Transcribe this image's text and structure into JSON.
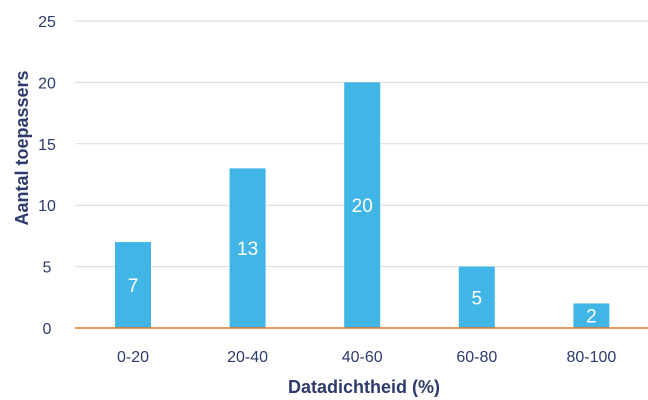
{
  "chart_data": {
    "type": "bar",
    "categories": [
      "0-20",
      "20-40",
      "40-60",
      "60-80",
      "80-100"
    ],
    "values": [
      7,
      13,
      20,
      5,
      2
    ],
    "xlabel": "Datadichtheid (%)",
    "ylabel": "Aantal toepassers",
    "ylim": [
      0,
      25
    ],
    "yticks": [
      0,
      5,
      10,
      15,
      20,
      25
    ],
    "grid": true,
    "legend": "none",
    "data_labels": true,
    "colors": {
      "bar": "#41b6e6",
      "grid": "#d9d9d9",
      "baseline": "#e87722",
      "text": "#2d3a6b",
      "data_label": "#ffffff"
    }
  }
}
